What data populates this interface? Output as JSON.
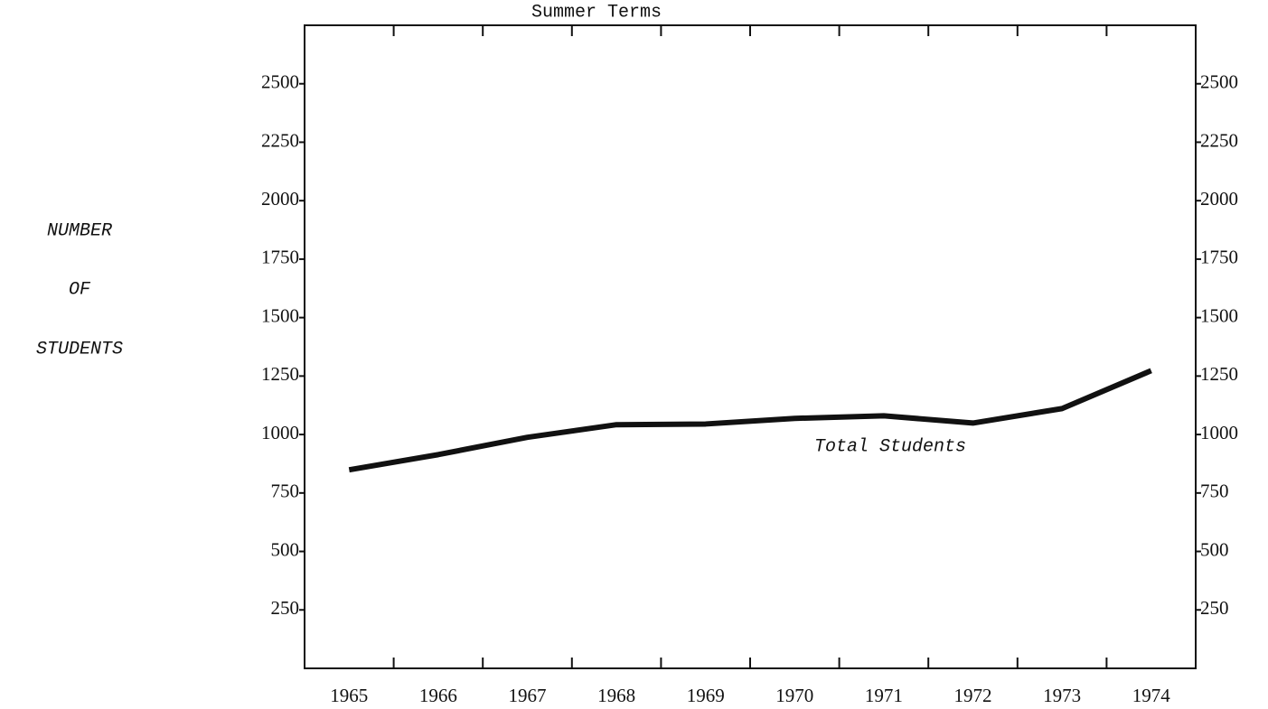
{
  "chart_data": {
    "type": "line",
    "title": "Summer Terms",
    "ylabel": [
      "NUMBER",
      "OF",
      "STUDENTS"
    ],
    "annotation": "Total Students",
    "categories": [
      "1965",
      "1966",
      "1967",
      "1968",
      "1969",
      "1970",
      "1971",
      "1972",
      "1973",
      "1974"
    ],
    "series": [
      {
        "name": "Total Students",
        "color": "#111111",
        "values": [
          849,
          914,
          988,
          1042,
          1045,
          1069,
          1080,
          1049,
          1111,
          1273
        ]
      }
    ],
    "ylim": [
      0,
      2750
    ],
    "yticks": [
      250,
      500,
      750,
      1000,
      1250,
      1500,
      1750,
      2000,
      2250,
      2500
    ],
    "grid": false
  }
}
